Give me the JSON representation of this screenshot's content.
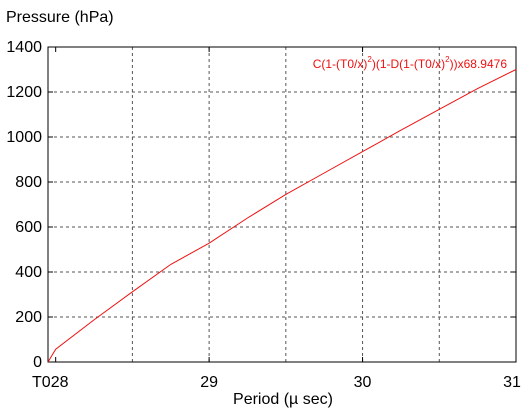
{
  "chart_data": {
    "type": "line",
    "ylabel": "Pressure (hPa)",
    "xlabel": "Period (µ sec)",
    "xlim": [
      27.95,
      31
    ],
    "ylim": [
      0,
      1400
    ],
    "grid": true,
    "x_ticks": [
      {
        "value": 27.95,
        "label": "T0"
      },
      {
        "value": 28,
        "label": "28"
      },
      {
        "value": 29,
        "label": "29"
      },
      {
        "value": 30,
        "label": "30"
      },
      {
        "value": 31,
        "label": "31"
      }
    ],
    "x_gridlines": [
      28.5,
      29,
      29.5,
      30,
      30.5
    ],
    "y_ticks": [
      0,
      200,
      400,
      600,
      800,
      1000,
      1200,
      1400
    ],
    "series": [
      {
        "color": "#ee1111",
        "x": [
          27.95,
          28.0,
          28.25,
          28.5,
          28.75,
          29.0,
          29.25,
          29.5,
          29.75,
          30.0,
          30.25,
          30.5,
          30.75,
          31.0
        ],
        "y": [
          0,
          57,
          187,
          312,
          434,
          528,
          640,
          745,
          840,
          935,
          1030,
          1123,
          1215,
          1300
        ]
      }
    ],
    "annotation": {
      "parts": [
        {
          "text": "C(1-(T0/x)",
          "sup": false
        },
        {
          "text": "2",
          "sup": true
        },
        {
          "text": ")(1-D(1-(T0/x)",
          "sup": false
        },
        {
          "text": "2",
          "sup": true
        },
        {
          "text": "))x68.9476",
          "sup": false
        }
      ]
    }
  }
}
